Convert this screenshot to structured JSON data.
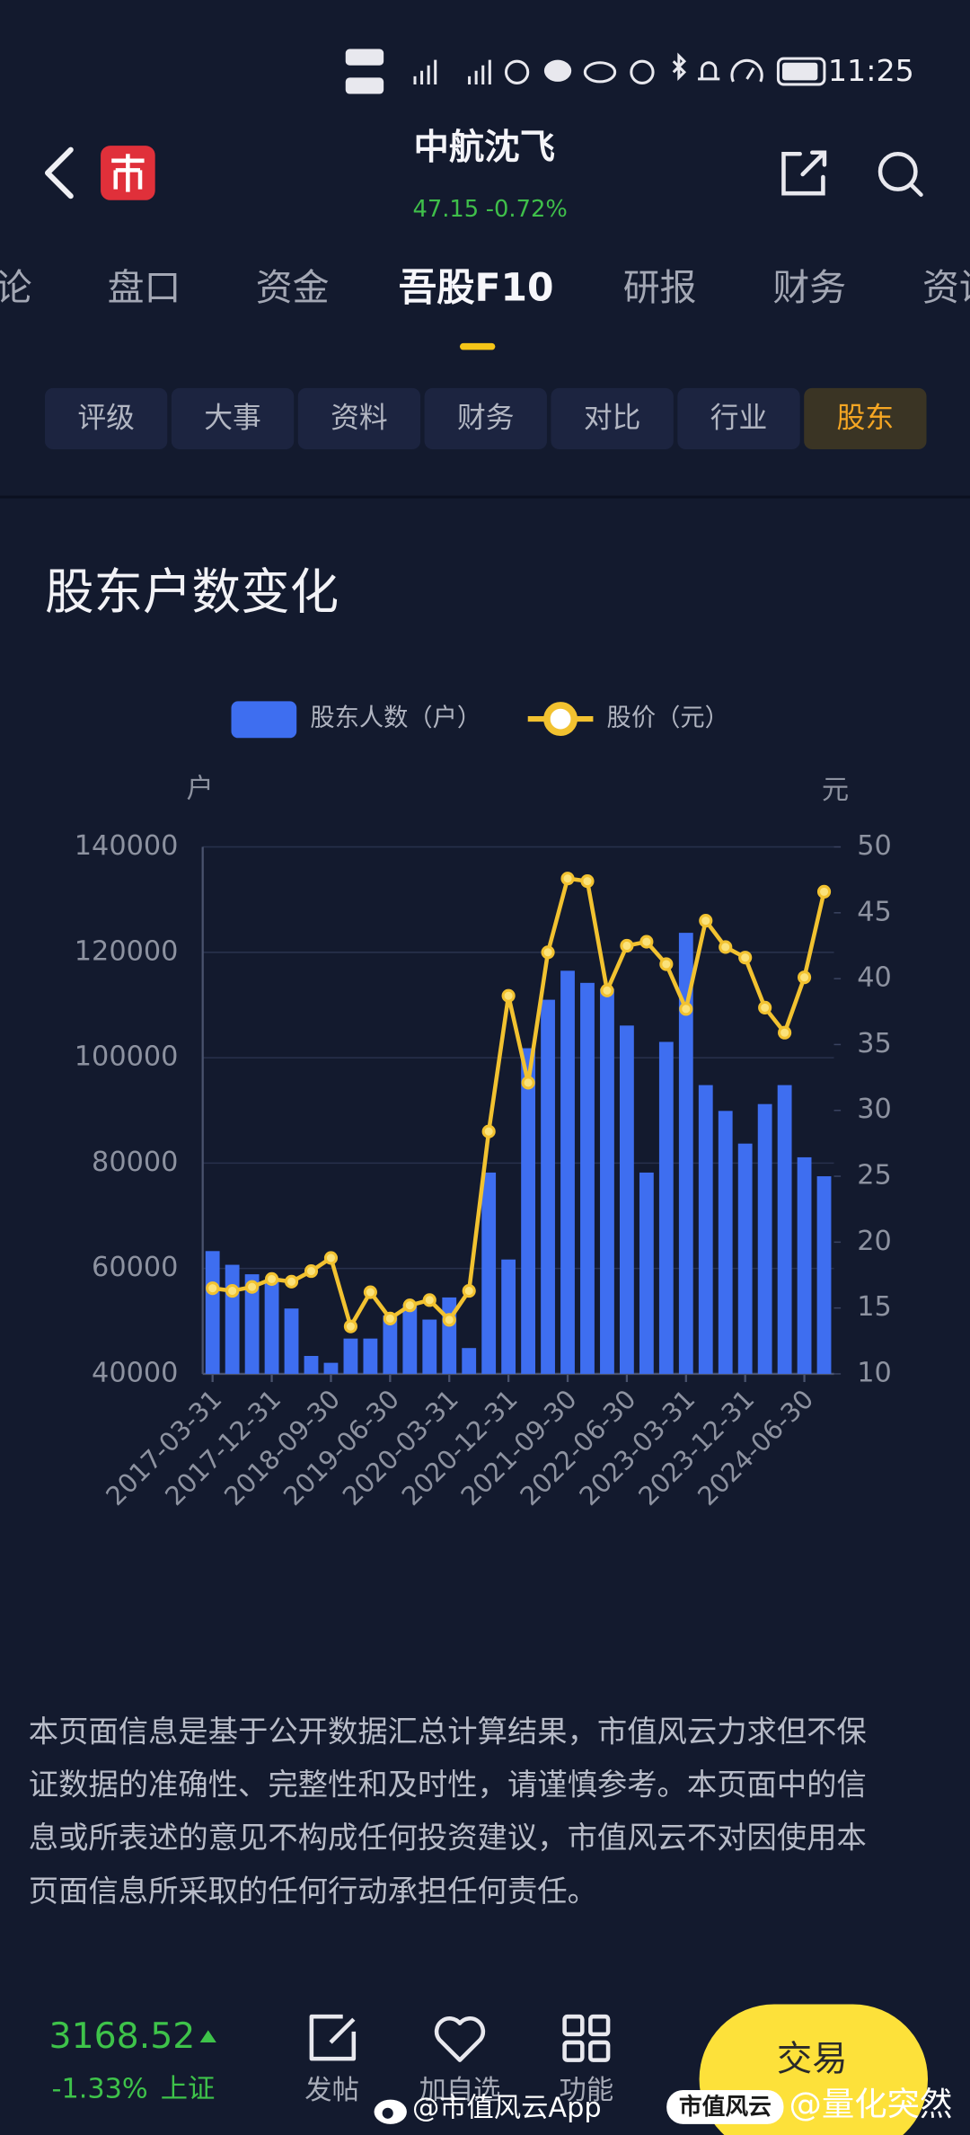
{
  "status_bar": {
    "time": "11:25"
  },
  "header": {
    "title": "中航沈飞",
    "price": "47.15",
    "change": "-0.72%"
  },
  "tabs": {
    "items": [
      "论",
      "盘口",
      "资金",
      "吾股F10",
      "研报",
      "财务",
      "资讯"
    ],
    "active": 3
  },
  "sub_tabs": {
    "items": [
      "评级",
      "大事",
      "资料",
      "财务",
      "对比",
      "行业",
      "股东"
    ],
    "active": 6
  },
  "section_title": "股东户数变化",
  "chart_data": {
    "type": "combo",
    "y_axis_label": "户",
    "y2_axis_label": "元",
    "categories": [
      "2017-03-31",
      null,
      null,
      "2017-12-31",
      null,
      null,
      "2018-09-30",
      null,
      null,
      "2019-06-30",
      null,
      null,
      "2020-03-31",
      null,
      null,
      "2020-12-31",
      null,
      null,
      "2021-09-30",
      null,
      null,
      "2022-06-30",
      null,
      null,
      "2023-03-31",
      null,
      null,
      "2023-12-31",
      null,
      null,
      "2024-06-30",
      null
    ],
    "series": [
      {
        "name": "股东人数（户）",
        "type": "bar",
        "color": "#3e6ef0",
        "values": [
          63300,
          60700,
          58900,
          57800,
          52400,
          43400,
          42100,
          46700,
          46700,
          51100,
          53200,
          50300,
          54500,
          44900,
          78200,
          61700,
          101800,
          111000,
          116500,
          114200,
          113100,
          106100,
          78200,
          103000,
          123700,
          94800,
          89900,
          83700,
          91200,
          94800,
          81100,
          77500
        ]
      },
      {
        "name": "股价（元）",
        "type": "line",
        "axis": "y2",
        "color": "#f2c230",
        "values": [
          16.5,
          16.3,
          16.6,
          17.2,
          17.0,
          17.8,
          18.8,
          13.6,
          16.2,
          14.2,
          15.2,
          15.6,
          14.1,
          16.3,
          28.4,
          38.7,
          32.1,
          42.0,
          47.6,
          47.4,
          39.1,
          42.5,
          42.8,
          41.1,
          37.7,
          44.4,
          42.4,
          41.6,
          37.8,
          35.9,
          40.1,
          46.6
        ]
      }
    ],
    "ylim": [
      40000,
      140000
    ],
    "yticks": [
      40000,
      60000,
      80000,
      100000,
      120000,
      140000
    ],
    "y2lim": [
      10,
      50
    ],
    "y2ticks": [
      10,
      15,
      20,
      25,
      30,
      35,
      40,
      45,
      50
    ],
    "grid": true,
    "legend": "top"
  },
  "disclaimer": [
    "本页面信息是基于公开数据汇总计算结果，市值风云力求但不保",
    "证数据的准确性、完整性和及时性，请谨慎参考。本页面中的信",
    "息或所表述的意见不构成任何投资建议，市值风云不对因使用本",
    "页面信息所采取的任何行动承担任何责任。"
  ],
  "footer": {
    "index_value": "3168.52",
    "index_change": "-1.33%",
    "index_name": "上证",
    "nav": [
      "发帖",
      "加自选",
      "功能"
    ],
    "trade_button": "交易"
  },
  "watermark": {
    "source": "@市值风云App",
    "badge": "市值风云",
    "author": "@量化突然"
  }
}
